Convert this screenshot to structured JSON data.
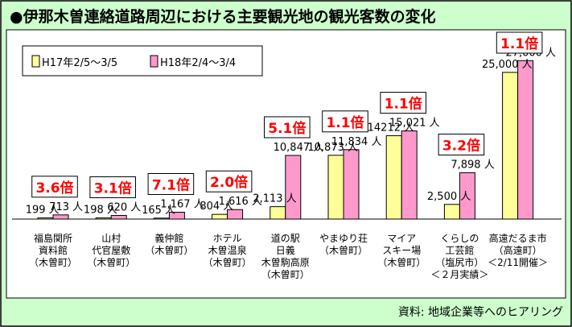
{
  "chart_data": {
    "type": "bar",
    "title": "●伊那木曽連絡道路周辺における主要観光地の観光客数の変化",
    "source": "資料: 地域企業等へのヒアリング",
    "unit": "人",
    "legend_position": "top-left",
    "grid": false,
    "ylim": [
      0,
      28000
    ],
    "colors": {
      "background": "#ccffcc",
      "plot": "#ffffff",
      "series1": "#ffff99",
      "series2": "#ff99cc",
      "ratio_text": "#ff0000"
    },
    "categories": [
      [
        "福島関所",
        "資料館",
        "（木曽町）"
      ],
      [
        "山村",
        "代官屋敷",
        "（木曽町）"
      ],
      [
        "義仲館",
        "（木曽町）"
      ],
      [
        "ホテル",
        "木曽温泉",
        "（木曽町）"
      ],
      [
        "道の駅",
        "日義",
        "木曽駒高原",
        "（木曽町）"
      ],
      [
        "やまゆり荘",
        "（木曽町）"
      ],
      [
        "マイア",
        "スキー場",
        "（木曽町）"
      ],
      [
        "くらしの",
        "工芸館",
        "（塩尻市）",
        "＜２月実績＞"
      ],
      [
        "高遠だるま市",
        "（高遠町）",
        "＜2/11開催＞"
      ]
    ],
    "series": [
      {
        "name": "H17年2/5〜3/5",
        "values": [
          199,
          198,
          165,
          804,
          2113,
          10873,
          14212,
          2500,
          25000
        ],
        "labels": [
          "199",
          "198",
          "165",
          "804",
          "2,113",
          "10,873",
          "14212",
          "2,500",
          "25,000"
        ]
      },
      {
        "name": "H18年2/4〜3/4",
        "values": [
          713,
          620,
          1167,
          1616,
          10847,
          11834,
          15021,
          7898,
          27000
        ],
        "labels": [
          "713",
          "620",
          "1,167",
          "1,616",
          "10,847",
          "11,834",
          "15,021",
          "7,898",
          "27,000"
        ]
      }
    ],
    "ratios": [
      "3.6倍",
      "3.1倍",
      "7.1倍",
      "2.0倍",
      "5.1倍",
      "1.1倍",
      "1.1倍",
      "3.2倍",
      "1.1倍"
    ]
  }
}
